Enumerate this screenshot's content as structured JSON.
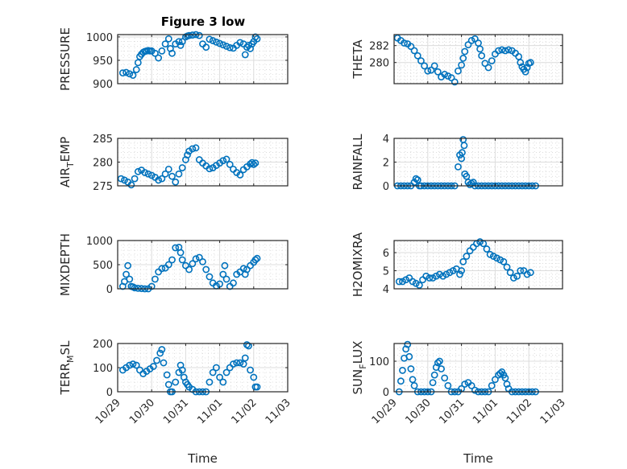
{
  "chart_data": {
    "type": "scatter",
    "title": "Figure 3 low",
    "marker": "open-circle",
    "marker_color": "#0072BD",
    "grid": true,
    "minor_grid": true,
    "x_tick_labels": [
      "10/29",
      "10/30",
      "10/31",
      "11/01",
      "11/02",
      "11/03"
    ],
    "x_range_days": [
      0,
      5
    ],
    "xlabel": "Time",
    "subplots": [
      {
        "ylabel": "PRESSURE",
        "ylabel_sub": null,
        "ylim": [
          900,
          1005
        ],
        "yticks": [
          900,
          950,
          1000
        ],
        "x_days": [
          0.15,
          0.25,
          0.35,
          0.45,
          0.55,
          0.6,
          0.65,
          0.7,
          0.75,
          0.8,
          0.85,
          0.9,
          0.95,
          1.0,
          1.1,
          1.2,
          1.3,
          1.4,
          1.5,
          1.55,
          1.6,
          1.7,
          1.8,
          1.85,
          1.9,
          2.0,
          2.05,
          2.1,
          2.2,
          2.3,
          2.4,
          2.5,
          2.6,
          2.7,
          2.8,
          2.9,
          3.0,
          3.1,
          3.2,
          3.3,
          3.4,
          3.5,
          3.6,
          3.7,
          3.75,
          3.8,
          3.85,
          3.9,
          3.95,
          4.0,
          4.05,
          4.1
        ],
        "y": [
          923,
          924,
          921,
          918,
          930,
          945,
          958,
          963,
          967,
          969,
          970,
          971,
          970,
          970,
          965,
          955,
          970,
          985,
          996,
          975,
          965,
          985,
          990,
          982,
          990,
          1000,
          1002,
          1003,
          1004,
          1005,
          1003,
          985,
          978,
          995,
          992,
          989,
          986,
          983,
          980,
          977,
          976,
          982,
          988,
          985,
          962,
          978,
          982,
          975,
          985,
          990,
          1000,
          996
        ]
      },
      {
        "ylabel": "THETA",
        "ylabel_sub": null,
        "ylim": [
          277.5,
          283.3
        ],
        "yticks": [
          280,
          282
        ],
        "x_days": [
          0.1,
          0.2,
          0.3,
          0.4,
          0.5,
          0.6,
          0.7,
          0.8,
          0.9,
          1.0,
          1.1,
          1.2,
          1.3,
          1.4,
          1.5,
          1.6,
          1.7,
          1.8,
          1.9,
          2.0,
          2.05,
          2.1,
          2.2,
          2.3,
          2.4,
          2.5,
          2.55,
          2.6,
          2.7,
          2.8,
          2.9,
          3.0,
          3.1,
          3.2,
          3.3,
          3.4,
          3.5,
          3.6,
          3.7,
          3.75,
          3.8,
          3.85,
          3.9,
          3.95,
          4.0,
          4.05
        ],
        "y": [
          282.9,
          282.6,
          282.3,
          282.2,
          281.9,
          281.4,
          280.8,
          280.2,
          279.6,
          279.0,
          279.1,
          279.6,
          278.9,
          278.3,
          278.6,
          278.4,
          278.2,
          277.7,
          279.0,
          279.7,
          280.5,
          281.3,
          282.1,
          282.6,
          282.8,
          282.3,
          281.6,
          280.8,
          279.9,
          279.4,
          280.2,
          281.0,
          281.4,
          281.5,
          281.4,
          281.5,
          281.4,
          281.1,
          280.7,
          280.0,
          279.5,
          279.2,
          278.9,
          279.4,
          279.9,
          280.0
        ]
      },
      {
        "ylabel": "AIR",
        "ylabel_sub": "T",
        "ylabel_suffix": "EMP",
        "ylim": [
          275,
          285
        ],
        "yticks": [
          275,
          280,
          285
        ],
        "x_days": [
          0.1,
          0.2,
          0.3,
          0.4,
          0.5,
          0.6,
          0.7,
          0.8,
          0.9,
          1.0,
          1.1,
          1.2,
          1.3,
          1.4,
          1.5,
          1.6,
          1.7,
          1.8,
          1.9,
          2.0,
          2.05,
          2.1,
          2.2,
          2.3,
          2.4,
          2.5,
          2.6,
          2.7,
          2.8,
          2.9,
          3.0,
          3.1,
          3.2,
          3.3,
          3.4,
          3.5,
          3.6,
          3.7,
          3.8,
          3.9,
          3.95,
          4.0,
          4.05
        ],
        "y": [
          276.5,
          276.2,
          275.8,
          275.2,
          276.5,
          278.0,
          278.3,
          277.8,
          277.5,
          277.2,
          276.8,
          276.2,
          276.5,
          277.5,
          278.5,
          277.0,
          275.8,
          277.5,
          278.8,
          280.5,
          281.5,
          282.3,
          282.8,
          283.0,
          280.5,
          279.8,
          279.2,
          278.6,
          278.8,
          279.3,
          279.8,
          280.3,
          280.6,
          279.5,
          278.5,
          277.8,
          277.3,
          278.4,
          279.0,
          279.6,
          279.9,
          279.5,
          279.8
        ]
      },
      {
        "ylabel": "RAINFALL",
        "ylabel_sub": null,
        "ylim": [
          0,
          4
        ],
        "yticks": [
          0,
          2,
          4
        ],
        "x_days": [
          0.1,
          0.2,
          0.3,
          0.4,
          0.5,
          0.6,
          0.65,
          0.7,
          0.75,
          0.8,
          0.9,
          1.0,
          1.1,
          1.2,
          1.3,
          1.4,
          1.5,
          1.6,
          1.7,
          1.8,
          1.9,
          1.95,
          2.0,
          2.02,
          2.05,
          2.08,
          2.1,
          2.15,
          2.2,
          2.25,
          2.3,
          2.35,
          2.4,
          2.5,
          2.6,
          2.7,
          2.8,
          2.9,
          3.0,
          3.1,
          3.2,
          3.3,
          3.4,
          3.5,
          3.6,
          3.7,
          3.8,
          3.9,
          4.0,
          4.1,
          4.2
        ],
        "y": [
          0,
          0,
          0,
          0,
          0,
          0.3,
          0.6,
          0.5,
          0,
          0,
          0,
          0,
          0,
          0,
          0,
          0,
          0,
          0,
          0,
          0,
          1.6,
          2.6,
          2.3,
          2.8,
          3.9,
          3.4,
          1.0,
          0.8,
          0.3,
          0.1,
          0.2,
          0.3,
          0,
          0,
          0,
          0,
          0,
          0,
          0,
          0,
          0,
          0,
          0,
          0,
          0,
          0,
          0,
          0,
          0,
          0,
          0
        ]
      },
      {
        "ylabel": "MIXDEPTH",
        "ylabel_sub": null,
        "ylim": [
          0,
          1000
        ],
        "yticks": [
          0,
          500,
          1000
        ],
        "x_days": [
          0.15,
          0.2,
          0.25,
          0.3,
          0.35,
          0.4,
          0.45,
          0.5,
          0.6,
          0.7,
          0.8,
          0.9,
          1.0,
          1.1,
          1.2,
          1.3,
          1.4,
          1.5,
          1.6,
          1.7,
          1.8,
          1.85,
          1.9,
          2.0,
          2.1,
          2.2,
          2.3,
          2.4,
          2.5,
          2.6,
          2.7,
          2.8,
          2.9,
          3.0,
          3.1,
          3.15,
          3.2,
          3.3,
          3.4,
          3.5,
          3.6,
          3.7,
          3.75,
          3.8,
          3.9,
          4.0,
          4.05,
          4.1
        ],
        "y": [
          50,
          150,
          300,
          480,
          200,
          50,
          40,
          20,
          10,
          5,
          0,
          0,
          50,
          200,
          350,
          420,
          430,
          500,
          600,
          850,
          860,
          750,
          600,
          480,
          400,
          520,
          620,
          650,
          560,
          400,
          250,
          120,
          60,
          100,
          300,
          480,
          200,
          50,
          120,
          300,
          350,
          420,
          300,
          400,
          480,
          550,
          600,
          630
        ]
      },
      {
        "ylabel": "H2OMIXRA",
        "ylabel_sub": null,
        "ylim": [
          4,
          6.67
        ],
        "yticks": [
          4,
          5,
          6
        ],
        "x_days": [
          0.15,
          0.25,
          0.35,
          0.45,
          0.55,
          0.65,
          0.75,
          0.85,
          0.95,
          1.05,
          1.15,
          1.25,
          1.35,
          1.45,
          1.55,
          1.65,
          1.75,
          1.85,
          1.95,
          2.0,
          2.05,
          2.15,
          2.25,
          2.35,
          2.45,
          2.55,
          2.65,
          2.75,
          2.85,
          2.95,
          3.05,
          3.15,
          3.25,
          3.35,
          3.45,
          3.55,
          3.65,
          3.75,
          3.85,
          3.95,
          4.05
        ],
        "y": [
          4.4,
          4.4,
          4.5,
          4.6,
          4.4,
          4.3,
          4.2,
          4.5,
          4.7,
          4.6,
          4.6,
          4.7,
          4.8,
          4.7,
          4.8,
          4.9,
          5.0,
          5.1,
          4.8,
          5.0,
          5.5,
          5.8,
          6.1,
          6.3,
          6.5,
          6.6,
          6.5,
          6.2,
          5.9,
          5.8,
          5.7,
          5.6,
          5.5,
          5.2,
          4.9,
          4.6,
          4.7,
          5.0,
          5.0,
          4.8,
          4.9
        ]
      },
      {
        "ylabel": "TERR",
        "ylabel_sub": "M",
        "ylabel_suffix": "SL",
        "ylim": [
          0,
          200
        ],
        "yticks": [
          0,
          100,
          200
        ],
        "x_days": [
          0.15,
          0.25,
          0.35,
          0.45,
          0.55,
          0.65,
          0.75,
          0.85,
          0.95,
          1.05,
          1.15,
          1.25,
          1.3,
          1.35,
          1.45,
          1.5,
          1.55,
          1.6,
          1.7,
          1.8,
          1.85,
          1.9,
          1.95,
          2.0,
          2.05,
          2.1,
          2.2,
          2.3,
          2.4,
          2.5,
          2.6,
          2.7,
          2.8,
          2.9,
          3.0,
          3.1,
          3.2,
          3.3,
          3.4,
          3.5,
          3.6,
          3.7,
          3.75,
          3.8,
          3.85,
          3.9,
          4.0,
          4.05,
          4.1
        ],
        "y": [
          90,
          100,
          110,
          115,
          110,
          90,
          75,
          85,
          95,
          105,
          130,
          160,
          175,
          120,
          70,
          30,
          0,
          0,
          40,
          80,
          110,
          90,
          60,
          40,
          30,
          20,
          10,
          0,
          0,
          0,
          0,
          40,
          80,
          100,
          60,
          40,
          80,
          100,
          115,
          120,
          120,
          115,
          140,
          195,
          190,
          90,
          60,
          20,
          20
        ]
      },
      {
        "ylabel": "SUN",
        "ylabel_sub": "F",
        "ylabel_suffix": "LUX",
        "ylim": [
          0,
          158
        ],
        "yticks": [
          0,
          100
        ],
        "x_days": [
          0.15,
          0.2,
          0.25,
          0.3,
          0.35,
          0.4,
          0.45,
          0.5,
          0.55,
          0.6,
          0.7,
          0.8,
          0.9,
          1.0,
          1.1,
          1.15,
          1.2,
          1.25,
          1.3,
          1.35,
          1.4,
          1.5,
          1.6,
          1.7,
          1.8,
          1.9,
          2.0,
          2.1,
          2.2,
          2.3,
          2.4,
          2.5,
          2.6,
          2.7,
          2.8,
          2.9,
          3.0,
          3.1,
          3.15,
          3.2,
          3.25,
          3.3,
          3.35,
          3.4,
          3.5,
          3.6,
          3.7,
          3.8,
          3.9,
          4.0,
          4.1,
          4.2
        ],
        "y": [
          0,
          35,
          70,
          110,
          140,
          155,
          115,
          75,
          40,
          20,
          0,
          0,
          0,
          0,
          0,
          30,
          55,
          80,
          95,
          100,
          75,
          45,
          20,
          0,
          0,
          0,
          10,
          25,
          30,
          20,
          5,
          0,
          0,
          0,
          0,
          20,
          40,
          55,
          60,
          65,
          55,
          45,
          25,
          10,
          0,
          0,
          0,
          0,
          0,
          0,
          0,
          0
        ]
      }
    ]
  }
}
